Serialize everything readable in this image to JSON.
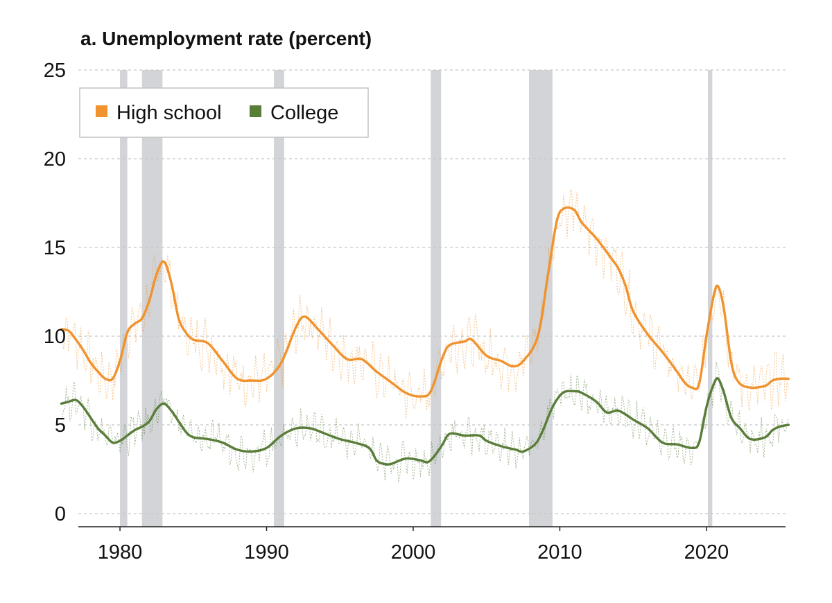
{
  "chart_data": {
    "type": "line",
    "title": "a. Unemployment rate (percent)",
    "xlabel": "",
    "ylabel": "",
    "xlim": [
      1975.6,
      2026.2
    ],
    "ylim": [
      0,
      25
    ],
    "x_ticks": [
      "1980",
      "1990",
      "2000",
      "2010",
      "2020"
    ],
    "y_ticks": [
      "0",
      "5",
      "10",
      "15",
      "20",
      "25"
    ],
    "grid": "horizontal dashed",
    "legend": {
      "placement": "top-left",
      "entries": [
        "High school",
        "College"
      ]
    },
    "recession_shading": [
      [
        1980.0,
        1980.5
      ],
      [
        1981.5,
        1982.9
      ],
      [
        1990.5,
        1991.2
      ],
      [
        2001.2,
        2001.9
      ],
      [
        2007.9,
        2009.5
      ],
      [
        2020.1,
        2020.4
      ]
    ],
    "series": [
      {
        "name": "High school",
        "color": "#f0922e",
        "points": [
          [
            1976.0,
            10.4
          ],
          [
            1976.5,
            10.3
          ],
          [
            1977.0,
            9.8
          ],
          [
            1977.5,
            9.2
          ],
          [
            1978.0,
            8.5
          ],
          [
            1978.5,
            8.0
          ],
          [
            1979.0,
            7.6
          ],
          [
            1979.5,
            7.6
          ],
          [
            1980.0,
            8.6
          ],
          [
            1980.5,
            10.2
          ],
          [
            1981.0,
            10.7
          ],
          [
            1981.5,
            11.0
          ],
          [
            1982.0,
            12.0
          ],
          [
            1982.5,
            13.5
          ],
          [
            1983.0,
            14.2
          ],
          [
            1983.5,
            13.0
          ],
          [
            1984.0,
            11.0
          ],
          [
            1984.5,
            10.2
          ],
          [
            1985.0,
            9.8
          ],
          [
            1986.0,
            9.6
          ],
          [
            1987.0,
            8.6
          ],
          [
            1988.0,
            7.6
          ],
          [
            1989.0,
            7.5
          ],
          [
            1990.0,
            7.6
          ],
          [
            1991.0,
            8.5
          ],
          [
            1992.0,
            10.5
          ],
          [
            1992.6,
            11.1
          ],
          [
            1993.5,
            10.4
          ],
          [
            1994.5,
            9.5
          ],
          [
            1995.5,
            8.7
          ],
          [
            1996.5,
            8.7
          ],
          [
            1997.5,
            8.0
          ],
          [
            1998.5,
            7.4
          ],
          [
            1999.5,
            6.8
          ],
          [
            2000.5,
            6.6
          ],
          [
            2001.2,
            6.9
          ],
          [
            2002.0,
            8.8
          ],
          [
            2002.5,
            9.5
          ],
          [
            2003.5,
            9.7
          ],
          [
            2004.0,
            9.8
          ],
          [
            2005.0,
            8.9
          ],
          [
            2006.0,
            8.6
          ],
          [
            2006.8,
            8.3
          ],
          [
            2007.5,
            8.6
          ],
          [
            2008.5,
            10.0
          ],
          [
            2009.2,
            13.5
          ],
          [
            2009.8,
            16.5
          ],
          [
            2010.3,
            17.2
          ],
          [
            2011.0,
            17.1
          ],
          [
            2011.5,
            16.4
          ],
          [
            2012.5,
            15.5
          ],
          [
            2013.5,
            14.4
          ],
          [
            2014.0,
            13.8
          ],
          [
            2014.5,
            12.8
          ],
          [
            2015.0,
            11.4
          ],
          [
            2016.0,
            10.1
          ],
          [
            2017.0,
            9.1
          ],
          [
            2018.0,
            8.0
          ],
          [
            2018.5,
            7.4
          ],
          [
            2019.0,
            7.1
          ],
          [
            2019.5,
            7.3
          ],
          [
            2020.0,
            10.0
          ],
          [
            2020.5,
            12.3
          ],
          [
            2020.8,
            12.8
          ],
          [
            2021.2,
            11.5
          ],
          [
            2021.7,
            8.5
          ],
          [
            2022.2,
            7.4
          ],
          [
            2023.0,
            7.1
          ],
          [
            2024.0,
            7.2
          ],
          [
            2024.5,
            7.5
          ],
          [
            2025.0,
            7.6
          ],
          [
            2025.6,
            7.6
          ]
        ]
      },
      {
        "name": "College",
        "color": "#5a7d3a",
        "points": [
          [
            1976.0,
            6.2
          ],
          [
            1976.5,
            6.3
          ],
          [
            1977.0,
            6.4
          ],
          [
            1977.5,
            6.0
          ],
          [
            1978.0,
            5.4
          ],
          [
            1978.5,
            4.8
          ],
          [
            1979.0,
            4.4
          ],
          [
            1979.5,
            4.0
          ],
          [
            1980.0,
            4.1
          ],
          [
            1980.5,
            4.4
          ],
          [
            1981.0,
            4.7
          ],
          [
            1981.5,
            4.9
          ],
          [
            1982.0,
            5.2
          ],
          [
            1982.5,
            5.9
          ],
          [
            1983.0,
            6.2
          ],
          [
            1983.5,
            5.8
          ],
          [
            1984.0,
            5.2
          ],
          [
            1984.5,
            4.6
          ],
          [
            1985.0,
            4.3
          ],
          [
            1986.0,
            4.2
          ],
          [
            1987.0,
            4.0
          ],
          [
            1988.0,
            3.6
          ],
          [
            1989.0,
            3.5
          ],
          [
            1990.0,
            3.7
          ],
          [
            1991.0,
            4.4
          ],
          [
            1992.0,
            4.8
          ],
          [
            1993.0,
            4.8
          ],
          [
            1994.0,
            4.5
          ],
          [
            1995.0,
            4.2
          ],
          [
            1996.0,
            4.0
          ],
          [
            1997.0,
            3.7
          ],
          [
            1997.5,
            3.0
          ],
          [
            1998.0,
            2.8
          ],
          [
            1998.5,
            2.8
          ],
          [
            1999.5,
            3.1
          ],
          [
            2000.5,
            3.0
          ],
          [
            2001.0,
            2.9
          ],
          [
            2001.5,
            3.3
          ],
          [
            2002.0,
            3.9
          ],
          [
            2002.5,
            4.5
          ],
          [
            2003.5,
            4.4
          ],
          [
            2004.5,
            4.4
          ],
          [
            2005.0,
            4.1
          ],
          [
            2006.0,
            3.8
          ],
          [
            2007.0,
            3.6
          ],
          [
            2007.5,
            3.5
          ],
          [
            2008.3,
            3.9
          ],
          [
            2008.8,
            4.6
          ],
          [
            2009.5,
            6.0
          ],
          [
            2010.2,
            6.8
          ],
          [
            2011.0,
            6.9
          ],
          [
            2011.5,
            6.8
          ],
          [
            2012.5,
            6.3
          ],
          [
            2013.2,
            5.7
          ],
          [
            2014.0,
            5.8
          ],
          [
            2015.0,
            5.3
          ],
          [
            2016.0,
            4.8
          ],
          [
            2017.0,
            4.0
          ],
          [
            2018.0,
            3.9
          ],
          [
            2019.0,
            3.7
          ],
          [
            2019.5,
            4.0
          ],
          [
            2020.0,
            6.0
          ],
          [
            2020.5,
            7.3
          ],
          [
            2020.8,
            7.6
          ],
          [
            2021.2,
            6.8
          ],
          [
            2021.7,
            5.4
          ],
          [
            2022.3,
            4.8
          ],
          [
            2023.0,
            4.2
          ],
          [
            2024.0,
            4.3
          ],
          [
            2024.5,
            4.7
          ],
          [
            2025.0,
            4.9
          ],
          [
            2025.6,
            5.0
          ]
        ]
      }
    ]
  }
}
